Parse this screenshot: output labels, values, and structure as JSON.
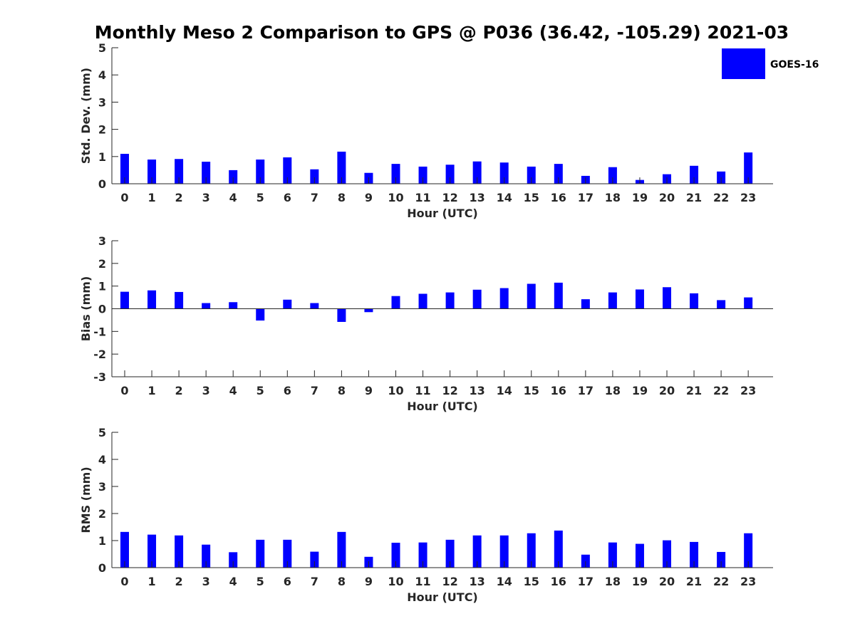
{
  "figure": {
    "title": "Monthly Meso 2 Comparison to GPS @ P036 (36.42, -105.29) 2021-03"
  },
  "legend": {
    "label": "GOES-16",
    "color": "#0000ff",
    "placement": "top-right"
  },
  "chart_data": [
    {
      "type": "bar",
      "xlabel": "Hour (UTC)",
      "ylabel": "Std. Dev. (mm)",
      "ylim": [
        0,
        5
      ],
      "yticks": [
        0,
        1,
        2,
        3,
        4,
        5
      ],
      "categories": [
        "0",
        "1",
        "2",
        "3",
        "4",
        "5",
        "6",
        "7",
        "8",
        "9",
        "10",
        "11",
        "12",
        "13",
        "14",
        "15",
        "16",
        "17",
        "18",
        "19",
        "20",
        "21",
        "22",
        "23"
      ],
      "series": [
        {
          "name": "GOES-16",
          "color": "#0000ff",
          "values": [
            1.1,
            0.89,
            0.91,
            0.81,
            0.5,
            0.89,
            0.97,
            0.53,
            1.18,
            0.4,
            0.73,
            0.63,
            0.7,
            0.82,
            0.78,
            0.63,
            0.73,
            0.29,
            0.61,
            0.14,
            0.35,
            0.66,
            0.45,
            1.15
          ]
        }
      ]
    },
    {
      "type": "bar",
      "xlabel": "Hour (UTC)",
      "ylabel": "Bias (mm)",
      "ylim": [
        -3,
        3
      ],
      "yticks": [
        -3,
        -2,
        -1,
        0,
        1,
        2,
        3
      ],
      "categories": [
        "0",
        "1",
        "2",
        "3",
        "4",
        "5",
        "6",
        "7",
        "8",
        "9",
        "10",
        "11",
        "12",
        "13",
        "14",
        "15",
        "16",
        "17",
        "18",
        "19",
        "20",
        "21",
        "22",
        "23"
      ],
      "series": [
        {
          "name": "GOES-16",
          "color": "#0000ff",
          "values": [
            0.75,
            0.81,
            0.74,
            0.25,
            0.29,
            -0.52,
            0.4,
            0.25,
            -0.58,
            -0.15,
            0.56,
            0.66,
            0.72,
            0.84,
            0.91,
            1.1,
            1.15,
            0.42,
            0.72,
            0.85,
            0.95,
            0.68,
            0.38,
            0.5
          ]
        }
      ]
    },
    {
      "type": "bar",
      "xlabel": "Hour (UTC)",
      "ylabel": "RMS (mm)",
      "ylim": [
        0,
        5
      ],
      "yticks": [
        0,
        1,
        2,
        3,
        4,
        5
      ],
      "categories": [
        "0",
        "1",
        "2",
        "3",
        "4",
        "5",
        "6",
        "7",
        "8",
        "9",
        "10",
        "11",
        "12",
        "13",
        "14",
        "15",
        "16",
        "17",
        "18",
        "19",
        "20",
        "21",
        "22",
        "23"
      ],
      "series": [
        {
          "name": "GOES-16",
          "color": "#0000ff",
          "values": [
            1.32,
            1.22,
            1.19,
            0.85,
            0.57,
            1.03,
            1.03,
            0.59,
            1.32,
            0.4,
            0.92,
            0.93,
            1.03,
            1.19,
            1.19,
            1.27,
            1.37,
            0.48,
            0.93,
            0.88,
            1.01,
            0.95,
            0.58,
            1.27
          ]
        }
      ]
    }
  ]
}
